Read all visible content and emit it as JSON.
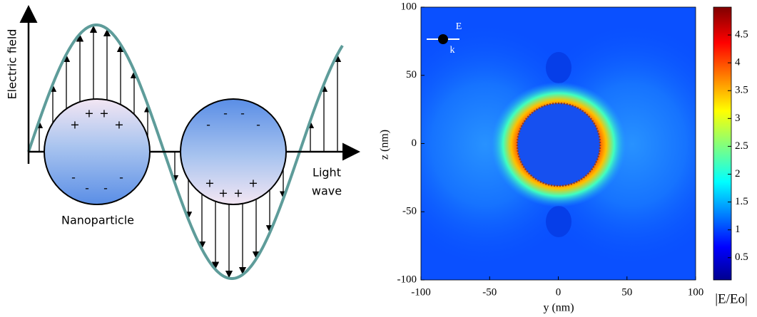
{
  "diagram": {
    "y_axis_label": "Electric field",
    "x_axis_label_lines": [
      "Light",
      "wave"
    ],
    "particle_label": "Nanoparticle",
    "particle_1_charges": {
      "top": [
        "+",
        "+",
        "+",
        "+"
      ],
      "bottom": [
        "-",
        "-",
        "-",
        "-"
      ]
    },
    "particle_2_charges": {
      "top": [
        "-",
        "-",
        "-",
        "-"
      ],
      "bottom": [
        "+",
        "+",
        "+",
        "+"
      ]
    }
  },
  "chart_data": {
    "type": "heatmap",
    "xlabel": "y (nm)",
    "ylabel": "z (nm)",
    "xlim": [
      -100,
      100
    ],
    "ylim": [
      -100,
      100
    ],
    "xticks": [
      -100,
      -50,
      0,
      50,
      100
    ],
    "yticks": [
      -100,
      -50,
      0,
      50,
      100
    ],
    "colorbar": {
      "label": "|E/Eo|",
      "lim": [
        0.1,
        5
      ],
      "ticks": [
        0.5,
        1,
        1.5,
        2,
        2.5,
        3,
        3.5,
        4,
        4.5
      ]
    },
    "inset": {
      "field_label": "E",
      "wave_vector_label": "k"
    }
  }
}
